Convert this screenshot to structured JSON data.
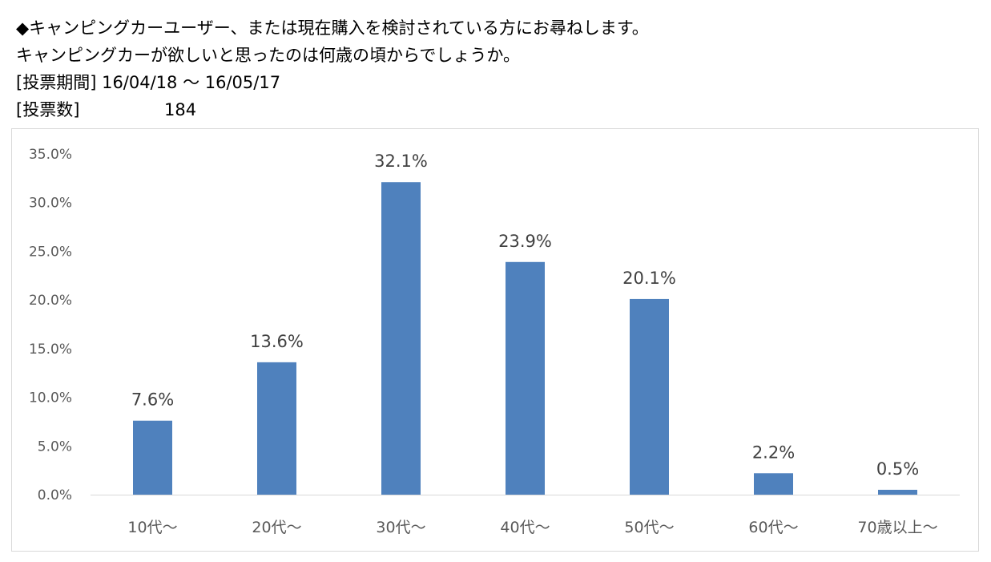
{
  "header": {
    "line1": "◆キャンピングカーユーザー、または現在購入を検討されている方にお尋ねします。",
    "line2": "キャンピングカーが欲しいと思ったのは何歳の頃からでしょうか。",
    "period_label": "[投票期間]",
    "period_value": "16/04/18 ～ 16/05/17",
    "votes_label": "[投票数]",
    "votes_value": "184"
  },
  "chart_data": {
    "type": "bar",
    "title": "",
    "xlabel": "",
    "ylabel": "",
    "categories": [
      "10代～",
      "20代～",
      "30代～",
      "40代～",
      "50代～",
      "60代～",
      "70歳以上～"
    ],
    "values": [
      7.6,
      13.6,
      32.1,
      23.9,
      20.1,
      2.2,
      0.5
    ],
    "data_labels": [
      "7.6%",
      "13.6%",
      "32.1%",
      "23.9%",
      "20.1%",
      "2.2%",
      "0.5%"
    ],
    "y_ticks": [
      "0.0%",
      "5.0%",
      "10.0%",
      "15.0%",
      "20.0%",
      "25.0%",
      "30.0%",
      "35.0%"
    ],
    "ylim": [
      0,
      35
    ],
    "grid": false,
    "legend": "none",
    "bar_color": "#4f81bd",
    "axis_color": "#d9d9d9"
  }
}
